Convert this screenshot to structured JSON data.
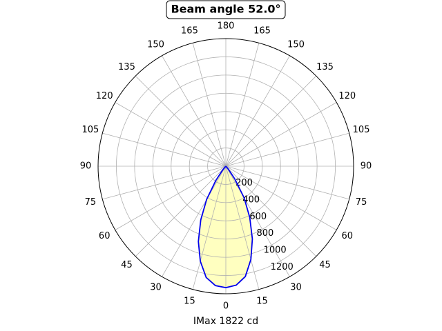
{
  "chart_data": {
    "type": "polar",
    "title": "Beam angle 52.0°",
    "xlabel": "IMax 1822 cd",
    "theta": [
      -45,
      -40,
      -35,
      -30,
      -25,
      -20,
      -15,
      -10,
      -5,
      0,
      5,
      10,
      15,
      20,
      25,
      30,
      35,
      40,
      45
    ],
    "values": [
      0,
      50,
      190,
      420,
      650,
      880,
      1080,
      1240,
      1315,
      1333,
      1310,
      1230,
      1060,
      850,
      620,
      400,
      170,
      40,
      0
    ],
    "color": "#0000ee",
    "fill": "#ffffc0",
    "rlim": [
      0,
      1400
    ],
    "rticks": [
      200,
      400,
      600,
      800,
      1000,
      1200
    ],
    "thetaticks": [
      {
        "value": 0,
        "label": "0"
      },
      {
        "value": 15,
        "label": "15"
      },
      {
        "value": 30,
        "label": "30"
      },
      {
        "value": 45,
        "label": "45"
      },
      {
        "value": 60,
        "label": "60"
      },
      {
        "value": 75,
        "label": "75"
      },
      {
        "value": 90,
        "label": "90"
      },
      {
        "value": 105,
        "label": "105"
      },
      {
        "value": 120,
        "label": "120"
      },
      {
        "value": 135,
        "label": "135"
      },
      {
        "value": 150,
        "label": "150"
      },
      {
        "value": 165,
        "label": "165"
      },
      {
        "value": 180,
        "label": "180"
      },
      {
        "value": 195,
        "label": "165"
      },
      {
        "value": 210,
        "label": "150"
      },
      {
        "value": 225,
        "label": "135"
      },
      {
        "value": 240,
        "label": "120"
      },
      {
        "value": 255,
        "label": "105"
      },
      {
        "value": 270,
        "label": "90"
      },
      {
        "value": 285,
        "label": "75"
      },
      {
        "value": 300,
        "label": "60"
      },
      {
        "value": 315,
        "label": "45"
      },
      {
        "value": 330,
        "label": "30"
      },
      {
        "value": 345,
        "label": "15"
      }
    ],
    "grid": true
  }
}
